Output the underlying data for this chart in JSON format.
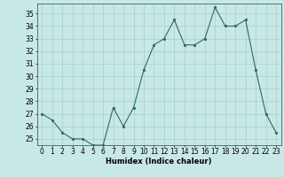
{
  "x": [
    0,
    1,
    2,
    3,
    4,
    5,
    6,
    7,
    8,
    9,
    10,
    11,
    12,
    13,
    14,
    15,
    16,
    17,
    18,
    19,
    20,
    21,
    22,
    23
  ],
  "y": [
    27.0,
    26.5,
    25.5,
    25.0,
    25.0,
    24.5,
    24.5,
    27.5,
    26.0,
    27.5,
    30.5,
    32.5,
    33.0,
    34.5,
    32.5,
    32.5,
    33.0,
    35.5,
    34.0,
    34.0,
    34.5,
    30.5,
    27.0,
    25.5
  ],
  "line_color": "#2d6b5e",
  "marker_color": "#2d6b5e",
  "bg_color": "#c8e8e5",
  "grid_color": "#aad4d0",
  "xlabel": "Humidex (Indice chaleur)",
  "ylabel_ticks": [
    25,
    26,
    27,
    28,
    29,
    30,
    31,
    32,
    33,
    34,
    35
  ],
  "ylim": [
    24.5,
    35.8
  ],
  "xlim": [
    -0.5,
    23.5
  ],
  "tick_fontsize": 5.5,
  "xlabel_fontsize": 6.0
}
